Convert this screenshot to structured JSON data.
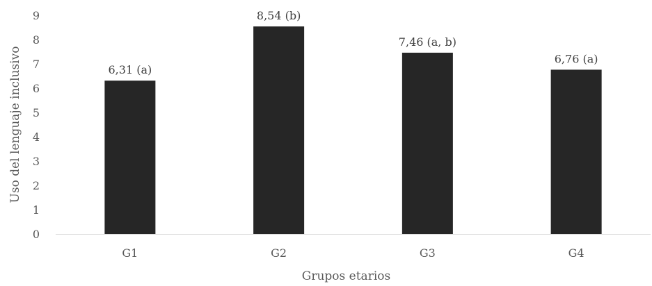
{
  "chart_data": {
    "type": "bar",
    "title": "",
    "xlabel": "Grupos etarios",
    "ylabel": "Uso del lenguaje inclusivo",
    "categories": [
      "G1",
      "G2",
      "G3",
      "G4"
    ],
    "values": [
      6.31,
      8.54,
      7.46,
      6.76
    ],
    "data_labels": [
      "6,31 (a)",
      "8,54 (b)",
      "7,46 (a, b)",
      "6,76 (a)"
    ],
    "ylim": [
      0,
      9
    ],
    "y_ticks": [
      0,
      1,
      2,
      3,
      4,
      5,
      6,
      7,
      8,
      9
    ],
    "y_tick_labels": [
      "0",
      "1",
      "2",
      "3",
      "4",
      "5",
      "6",
      "7",
      "8",
      "9"
    ],
    "grid": false,
    "legend": "none",
    "bar_color": "#262626",
    "axis_color": "#d9d9d9"
  }
}
